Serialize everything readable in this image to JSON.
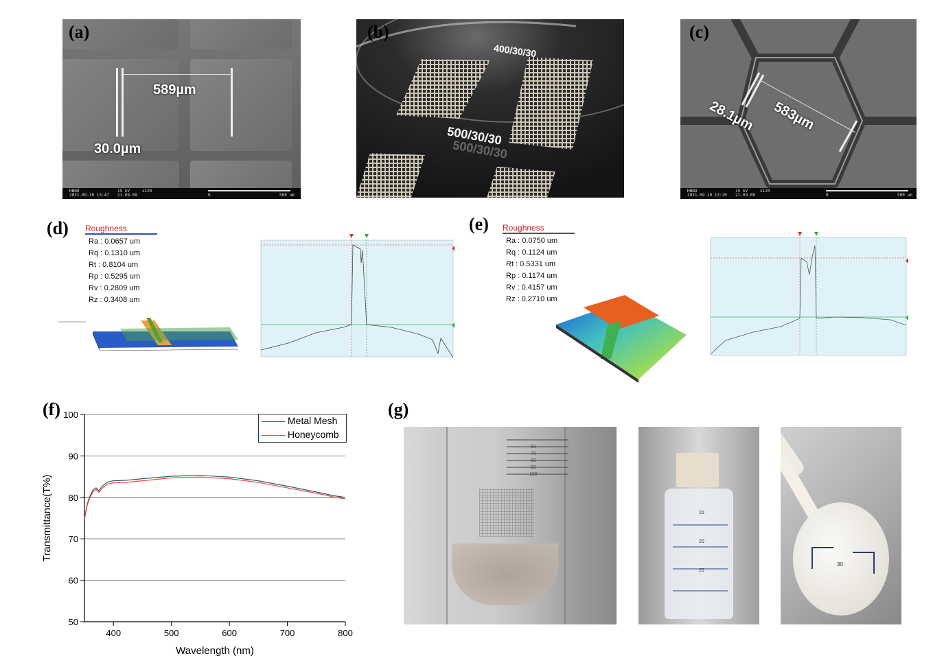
{
  "labels": {
    "a": "(a)",
    "b": "(b)",
    "c": "(c)",
    "d": "(d)",
    "e": "(e)",
    "f": "(f)",
    "g": "(g)"
  },
  "panel_a": {
    "width": "589µm",
    "line": "30.0µm",
    "footer": {
      "left": "HBNU\n2021.09.10 13:47",
      "kv": "15 kV\n21.09.09",
      "mag": "x120",
      "scale": "500 um",
      "zero": "0"
    }
  },
  "panel_b": {
    "text1": "400/30/30",
    "text2": "500/30/30",
    "text3": "500/30/30"
  },
  "panel_c": {
    "line": "28.1µm",
    "width": "583µm",
    "footer": {
      "left": "HBNU\n2021.09.10 13:20",
      "kv": "15 kV\n21.09.09",
      "mag": "x120",
      "scale": "500 um",
      "zero": "0"
    }
  },
  "panel_d": {
    "roughness_title": "Roughness",
    "rows": [
      "Ra : 0.0657 um",
      "Rq : 0.1310 um",
      "Rt : 0.8104 um",
      "Rp : 0.5295 um",
      "Rv : 0.2809 um",
      "Rz : 0.3408 um"
    ],
    "colors": {
      "flat": "#3060c8",
      "ridge": "#e8a040"
    }
  },
  "panel_e": {
    "roughness_title": "Roughness",
    "rows": [
      "Ra : 0.0750 um",
      "Rq : 0.1124 um",
      "Rt : 0.5331 um",
      "Rp : 0.1174 um",
      "Rv : 0.4157 um",
      "Rz : 0.2710 um"
    ]
  },
  "chart_data": {
    "type": "line",
    "xlabel": "Wavelength (nm)",
    "ylabel": "Transmittance(T%)",
    "xlim": [
      350,
      800
    ],
    "ylim": [
      50,
      100
    ],
    "xticks": [
      400,
      500,
      600,
      700,
      800
    ],
    "yticks": [
      50,
      60,
      70,
      80,
      90,
      100
    ],
    "grid": "horizontal",
    "legend_position": "top-right",
    "series": [
      {
        "name": "Metal Mesh",
        "color": "#2f5a5a",
        "x": [
          350,
          355,
          360,
          365,
          370,
          375,
          380,
          390,
          400,
          420,
          450,
          500,
          550,
          600,
          650,
          700,
          750,
          780,
          800
        ],
        "y": [
          75.0,
          78.5,
          80.5,
          81.8,
          82.3,
          81.6,
          82.6,
          83.7,
          84.0,
          84.1,
          84.5,
          85.1,
          85.3,
          84.9,
          84.0,
          82.7,
          81.3,
          80.4,
          80.0
        ]
      },
      {
        "name": "Honeycomb",
        "color": "#e84545",
        "x": [
          350,
          355,
          360,
          365,
          370,
          375,
          380,
          390,
          400,
          420,
          450,
          500,
          550,
          600,
          650,
          700,
          750,
          780,
          800
        ],
        "y": [
          74.6,
          78.2,
          80.1,
          81.4,
          81.9,
          81.2,
          82.1,
          83.2,
          83.5,
          83.6,
          84.0,
          84.7,
          84.9,
          84.5,
          83.6,
          82.3,
          81.0,
          80.1,
          79.6
        ]
      }
    ]
  },
  "panel_g": {
    "jar_marks": [
      "15",
      "20",
      "25"
    ],
    "spoon_mark": "30",
    "tube_marks": [
      "60",
      "70",
      "80",
      "90",
      "100"
    ]
  }
}
